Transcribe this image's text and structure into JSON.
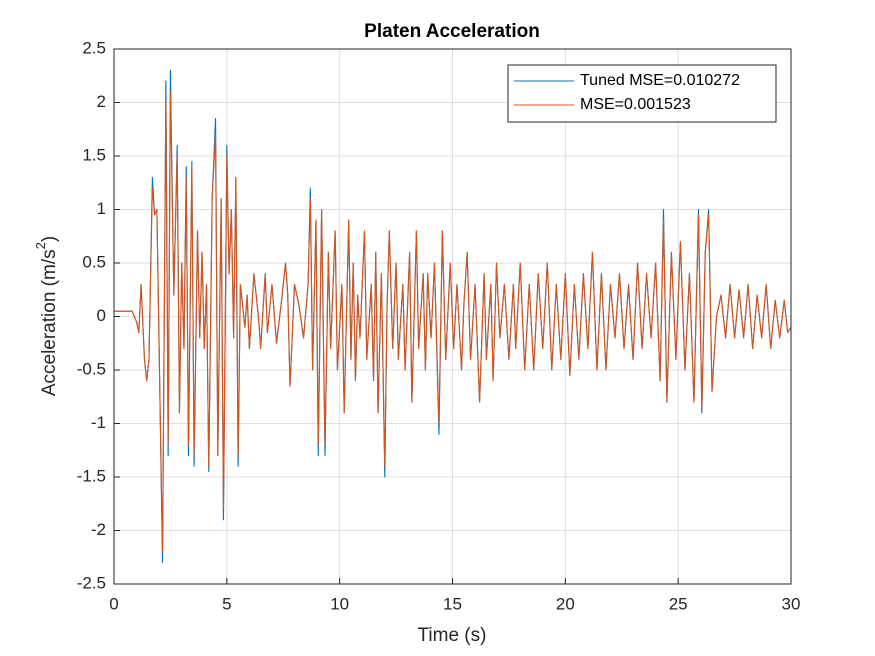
{
  "chart_data": {
    "type": "line",
    "title": "Platen Acceleration",
    "xlabel": "Time (s)",
    "ylabel": [
      "Acceleration (m/s",
      "2",
      ")"
    ],
    "xlim": [
      0,
      30
    ],
    "xticks": [
      0,
      5,
      10,
      15,
      20,
      25,
      30
    ],
    "ylim": [
      -2.5,
      2.5
    ],
    "yticks": [
      -2.5,
      -2,
      -1.5,
      -1,
      -0.5,
      0,
      0.5,
      1,
      1.5,
      2,
      2.5
    ],
    "grid": true,
    "legend": "top-right",
    "x": [
      0,
      0.5,
      0.8,
      1.0,
      1.1,
      1.2,
      1.35,
      1.45,
      1.55,
      1.7,
      1.8,
      1.9,
      2.0,
      2.15,
      2.3,
      2.4,
      2.5,
      2.65,
      2.8,
      2.9,
      3.0,
      3.1,
      3.2,
      3.3,
      3.45,
      3.55,
      3.7,
      3.8,
      3.9,
      4.0,
      4.1,
      4.2,
      4.35,
      4.5,
      4.6,
      4.75,
      4.85,
      5.0,
      5.1,
      5.2,
      5.3,
      5.4,
      5.5,
      5.6,
      5.8,
      5.9,
      6.0,
      6.2,
      6.4,
      6.5,
      6.7,
      6.8,
      7.0,
      7.2,
      7.4,
      7.6,
      7.7,
      7.8,
      8.0,
      8.2,
      8.4,
      8.6,
      8.7,
      8.8,
      8.95,
      9.05,
      9.2,
      9.35,
      9.5,
      9.6,
      9.8,
      9.9,
      10.1,
      10.2,
      10.4,
      10.5,
      10.6,
      10.7,
      10.8,
      10.9,
      11.1,
      11.2,
      11.4,
      11.5,
      11.6,
      11.7,
      11.85,
      12.0,
      12.1,
      12.2,
      12.35,
      12.5,
      12.6,
      12.8,
      12.9,
      13.1,
      13.2,
      13.4,
      13.5,
      13.7,
      13.8,
      13.9,
      14.05,
      14.2,
      14.4,
      14.55,
      14.7,
      14.9,
      15.05,
      15.2,
      15.4,
      15.5,
      15.65,
      15.8,
      16.0,
      16.2,
      16.4,
      16.5,
      16.7,
      16.8,
      16.95,
      17.1,
      17.3,
      17.5,
      17.7,
      17.8,
      18.0,
      18.2,
      18.4,
      18.6,
      18.8,
      19.0,
      19.2,
      19.4,
      19.6,
      19.8,
      20.0,
      20.2,
      20.4,
      20.6,
      20.8,
      21.0,
      21.2,
      21.4,
      21.6,
      21.8,
      22.0,
      22.2,
      22.4,
      22.6,
      22.8,
      23.0,
      23.2,
      23.4,
      23.6,
      23.8,
      24.0,
      24.2,
      24.35,
      24.5,
      24.7,
      24.9,
      25.1,
      25.3,
      25.5,
      25.7,
      25.9,
      26.05,
      26.2,
      26.35,
      26.5,
      26.7,
      26.9,
      27.1,
      27.3,
      27.5,
      27.7,
      27.9,
      28.1,
      28.3,
      28.5,
      28.7,
      28.9,
      29.1,
      29.3,
      29.5,
      29.7,
      29.85,
      30
    ],
    "series": [
      {
        "name": "Tuned MSE=0.010272",
        "color": "#0072bd",
        "values": [
          0.05,
          0.05,
          0.05,
          -0.05,
          -0.15,
          0.3,
          -0.4,
          -0.6,
          -0.4,
          1.3,
          0.95,
          1.0,
          -0.3,
          -2.3,
          2.2,
          -1.3,
          2.3,
          0.2,
          1.6,
          -0.9,
          0.5,
          -0.3,
          1.4,
          -1.3,
          1.45,
          -1.4,
          0.8,
          -0.2,
          0.6,
          -0.3,
          0.3,
          -1.45,
          1.1,
          1.85,
          -1.3,
          1.1,
          -1.9,
          1.6,
          0.4,
          1.0,
          -0.2,
          1.3,
          -1.4,
          0.3,
          -0.1,
          0.2,
          -0.3,
          0.4,
          0.0,
          -0.3,
          0.4,
          -0.15,
          0.3,
          -0.25,
          0.1,
          0.5,
          0.2,
          -0.65,
          0.3,
          0.1,
          -0.2,
          0.3,
          1.2,
          -0.5,
          0.9,
          -1.3,
          1.0,
          -1.3,
          0.6,
          -0.3,
          0.8,
          -0.5,
          0.3,
          -0.9,
          0.9,
          -0.4,
          0.5,
          -0.6,
          0.2,
          -0.2,
          0.8,
          -0.4,
          0.3,
          -0.6,
          0.6,
          -0.9,
          0.4,
          -1.5,
          0.1,
          0.8,
          -0.3,
          0.5,
          -0.4,
          0.3,
          -0.5,
          0.6,
          -0.8,
          0.8,
          -0.3,
          0.4,
          -0.5,
          0.4,
          -0.2,
          0.5,
          -1.1,
          0.8,
          -0.4,
          0.5,
          -0.3,
          0.3,
          -0.5,
          0.1,
          0.6,
          -0.4,
          0.3,
          -0.8,
          0.4,
          -0.4,
          0.3,
          -0.6,
          0.5,
          -0.2,
          0.3,
          -0.4,
          0.3,
          -0.3,
          0.5,
          -0.5,
          0.3,
          -0.5,
          0.4,
          -0.3,
          0.5,
          -0.5,
          0.3,
          -0.4,
          0.4,
          -0.55,
          0.3,
          -0.4,
          0.4,
          -0.3,
          0.6,
          -0.5,
          0.4,
          -0.5,
          0.3,
          -0.2,
          0.4,
          -0.3,
          0.3,
          -0.4,
          0.5,
          -0.3,
          0.4,
          -0.2,
          0.5,
          -0.6,
          1.0,
          -0.8,
          0.6,
          -0.4,
          0.7,
          -0.5,
          0.4,
          -0.8,
          1.0,
          -0.9,
          0.6,
          1.0,
          -0.7,
          0.0,
          0.2,
          -0.2,
          0.3,
          -0.2,
          0.25,
          -0.2,
          0.3,
          -0.3,
          0.2,
          -0.2,
          0.3,
          -0.3,
          0.15,
          -0.2,
          0.15,
          -0.15,
          -0.1
        ]
      },
      {
        "name": "MSE=0.001523",
        "color": "#d95319",
        "values": [
          0.05,
          0.05,
          0.05,
          -0.05,
          -0.15,
          0.3,
          -0.4,
          -0.6,
          -0.4,
          1.2,
          0.95,
          1.0,
          -0.3,
          -2.2,
          2.0,
          -1.2,
          2.1,
          0.2,
          1.5,
          -0.9,
          0.5,
          -0.3,
          1.3,
          -1.2,
          1.4,
          -1.3,
          0.8,
          -0.2,
          0.6,
          -0.3,
          0.3,
          -1.4,
          1.1,
          1.7,
          -1.3,
          1.1,
          -1.8,
          1.5,
          0.4,
          1.0,
          -0.2,
          1.3,
          -1.3,
          0.3,
          -0.1,
          0.2,
          -0.3,
          0.4,
          0.0,
          -0.3,
          0.4,
          -0.15,
          0.3,
          -0.25,
          0.1,
          0.5,
          0.2,
          -0.65,
          0.3,
          0.1,
          -0.2,
          0.3,
          1.1,
          -0.5,
          0.9,
          -1.2,
          1.0,
          -1.2,
          0.6,
          -0.3,
          0.8,
          -0.5,
          0.3,
          -0.9,
          0.9,
          -0.4,
          0.5,
          -0.6,
          0.2,
          -0.2,
          0.8,
          -0.4,
          0.3,
          -0.6,
          0.6,
          -0.9,
          0.4,
          -1.4,
          0.1,
          0.8,
          -0.3,
          0.5,
          -0.4,
          0.3,
          -0.5,
          0.6,
          -0.8,
          0.8,
          -0.3,
          0.4,
          -0.5,
          0.4,
          -0.2,
          0.5,
          -1.0,
          0.8,
          -0.4,
          0.5,
          -0.3,
          0.3,
          -0.5,
          0.1,
          0.6,
          -0.4,
          0.3,
          -0.8,
          0.4,
          -0.4,
          0.3,
          -0.6,
          0.5,
          -0.2,
          0.3,
          -0.4,
          0.3,
          -0.3,
          0.5,
          -0.5,
          0.3,
          -0.5,
          0.4,
          -0.3,
          0.5,
          -0.5,
          0.3,
          -0.4,
          0.4,
          -0.55,
          0.3,
          -0.4,
          0.4,
          -0.3,
          0.6,
          -0.5,
          0.4,
          -0.5,
          0.3,
          -0.2,
          0.4,
          -0.3,
          0.3,
          -0.4,
          0.5,
          -0.3,
          0.4,
          -0.2,
          0.5,
          -0.6,
          0.9,
          -0.8,
          0.6,
          -0.4,
          0.7,
          -0.5,
          0.4,
          -0.8,
          0.95,
          -0.85,
          0.6,
          0.95,
          -0.7,
          0.0,
          0.2,
          -0.2,
          0.3,
          -0.2,
          0.25,
          -0.2,
          0.3,
          -0.3,
          0.2,
          -0.2,
          0.3,
          -0.3,
          0.15,
          -0.2,
          0.15,
          -0.15,
          -0.1
        ]
      }
    ]
  }
}
